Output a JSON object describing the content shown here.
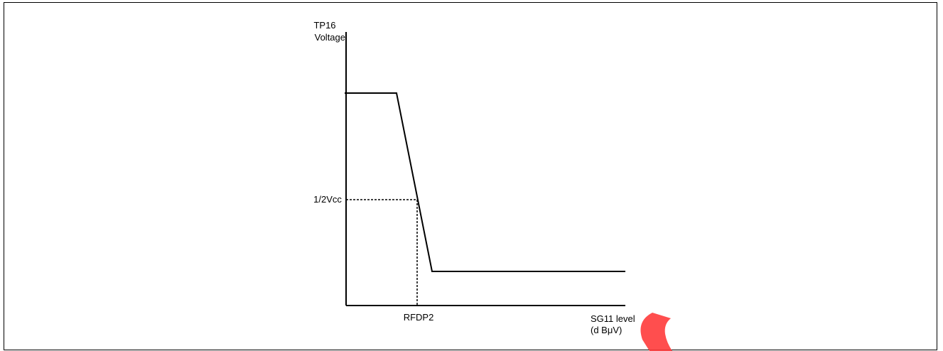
{
  "diagram": {
    "y_axis_label_line1": "TP16",
    "y_axis_label_line2": "Voltage",
    "half_vcc_label": "1/2Vcc",
    "rfdp2_label": "RFDP2",
    "x_axis_label_line1": "SG11 level",
    "x_axis_label_line2": "(d BμV)"
  },
  "colors": {
    "line": "#000000",
    "watermark": "#ff3b3b"
  }
}
